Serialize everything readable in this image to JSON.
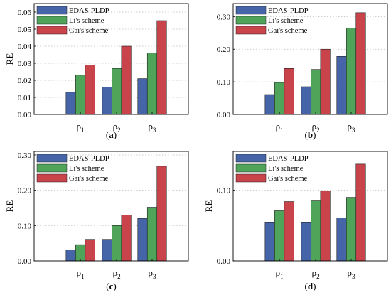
{
  "figure": {
    "legend": [
      "EDAS-PLDP",
      "Li's scheme",
      "Gai's scheme"
    ],
    "colors": [
      "#4565a8",
      "#4fa45a",
      "#c9434a"
    ]
  },
  "chart_data": [
    {
      "panel": "a",
      "type": "bar",
      "ylabel": "RE",
      "xlabel": "",
      "categories": [
        "ρ1",
        "ρ2",
        "ρ3"
      ],
      "category_parts": [
        [
          "ρ",
          "1"
        ],
        [
          "ρ",
          "2"
        ],
        [
          "ρ",
          "3"
        ]
      ],
      "ylim": [
        0,
        0.065
      ],
      "yticks": [
        0,
        0.01,
        0.02,
        0.03,
        0.04,
        0.05,
        0.06
      ],
      "ytick_labels": [
        "0.00",
        "0.01",
        "0.02",
        "0.03",
        "0.04",
        "0.05",
        "0.06"
      ],
      "grid": true,
      "legend_position": "top-left",
      "series": [
        {
          "name": "EDAS-PLDP",
          "values": [
            0.013,
            0.016,
            0.021
          ]
        },
        {
          "name": "Li's scheme",
          "values": [
            0.023,
            0.027,
            0.036
          ]
        },
        {
          "name": "Gai's scheme",
          "values": [
            0.029,
            0.04,
            0.055
          ]
        }
      ]
    },
    {
      "panel": "b",
      "type": "bar",
      "ylabel": "",
      "xlabel": "",
      "categories": [
        "ρ1",
        "ρ2",
        "ρ3"
      ],
      "category_parts": [
        [
          "ρ",
          "1"
        ],
        [
          "ρ",
          "2"
        ],
        [
          "ρ",
          "3"
        ]
      ],
      "ylim": [
        0,
        0.34
      ],
      "yticks": [
        0,
        0.1,
        0.2,
        0.3
      ],
      "ytick_labels": [
        "0.00",
        "0.10",
        "0.20",
        "0.30"
      ],
      "grid": true,
      "legend_position": "top-left",
      "series": [
        {
          "name": "EDAS-PLDP",
          "values": [
            0.061,
            0.085,
            0.178
          ]
        },
        {
          "name": "Li's scheme",
          "values": [
            0.098,
            0.138,
            0.265
          ]
        },
        {
          "name": "Gai's scheme",
          "values": [
            0.141,
            0.2,
            0.312
          ]
        }
      ]
    },
    {
      "panel": "c",
      "type": "bar",
      "ylabel": "RE",
      "xlabel": "",
      "categories": [
        "ρ1",
        "ρ2",
        "ρ3"
      ],
      "category_parts": [
        [
          "ρ",
          "1"
        ],
        [
          "ρ",
          "2"
        ],
        [
          "ρ",
          "3"
        ]
      ],
      "ylim": [
        0,
        0.31
      ],
      "yticks": [
        0,
        0.1,
        0.2,
        0.3
      ],
      "ytick_labels": [
        "0.00",
        "0.10",
        "0.20",
        "0.30"
      ],
      "grid": true,
      "legend_position": "top-left",
      "series": [
        {
          "name": "EDAS-PLDP",
          "values": [
            0.031,
            0.061,
            0.12
          ]
        },
        {
          "name": "Li's scheme",
          "values": [
            0.046,
            0.1,
            0.152
          ]
        },
        {
          "name": "Gai's scheme",
          "values": [
            0.061,
            0.13,
            0.268
          ]
        }
      ]
    },
    {
      "panel": "d",
      "type": "bar",
      "ylabel": "RE",
      "xlabel": "",
      "categories": [
        "ρ1",
        "ρ2",
        "ρ3"
      ],
      "category_parts": [
        [
          "ρ",
          "1"
        ],
        [
          "ρ",
          "2"
        ],
        [
          "ρ",
          "3"
        ]
      ],
      "ylim": [
        0,
        0.155
      ],
      "yticks": [
        0,
        0.1
      ],
      "ytick_labels": [
        "0.00",
        "0.10"
      ],
      "grid": true,
      "legend_position": "top-left",
      "series": [
        {
          "name": "EDAS-PLDP",
          "values": [
            0.054,
            0.054,
            0.061
          ]
        },
        {
          "name": "Li's scheme",
          "values": [
            0.071,
            0.085,
            0.09
          ]
        },
        {
          "name": "Gai's scheme",
          "values": [
            0.084,
            0.099,
            0.137
          ]
        }
      ]
    }
  ]
}
